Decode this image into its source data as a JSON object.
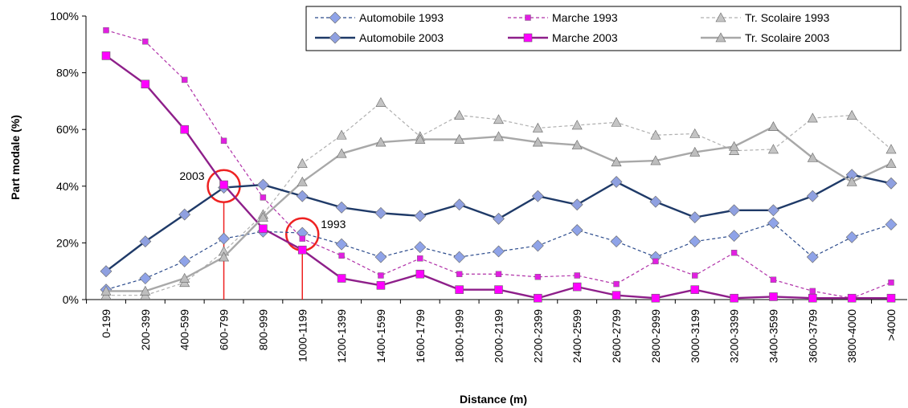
{
  "chart_data": {
    "type": "line",
    "x_label": "Distance (m)",
    "y_label": "Part modale (%)",
    "categories": [
      "0-199",
      "200-399",
      "400-599",
      "600-799",
      "800-999",
      "1000-1199",
      "1200-1399",
      "1400-1599",
      "1600-1799",
      "1800-1999",
      "2000-2199",
      "2200-2399",
      "2400-2599",
      "2600-2799",
      "2800-2999",
      "3000-3199",
      "3200-3399",
      "3400-3599",
      "3600-3799",
      "3800-4000",
      ">4000"
    ],
    "ylim": [
      0,
      100
    ],
    "yticks": [
      {
        "value": 0,
        "label": "0%"
      },
      {
        "value": 20,
        "label": "20%"
      },
      {
        "value": 40,
        "label": "40%"
      },
      {
        "value": 60,
        "label": "60%"
      },
      {
        "value": 80,
        "label": "80%"
      },
      {
        "value": 100,
        "label": "100%"
      }
    ],
    "grid": false,
    "legend": "top-right",
    "series": [
      {
        "name": "Automobile 1993",
        "color": "#2a4a8c",
        "marker_color": "#8fa3e8",
        "marker": "diamond",
        "dashed": true,
        "values": [
          3.5,
          7.5,
          13.5,
          21.5,
          24,
          23.5,
          19.5,
          15,
          18.5,
          15,
          17,
          19,
          24.5,
          20.5,
          15,
          20.5,
          22.5,
          27,
          15,
          22,
          26.5
        ]
      },
      {
        "name": "Marche 1993",
        "color": "#b030a8",
        "marker_color": "#e020e0",
        "marker": "square",
        "dashed": true,
        "values": [
          95,
          91,
          77.5,
          56,
          36,
          21.5,
          15.5,
          8.5,
          14.5,
          9,
          9,
          8,
          8.5,
          5.5,
          13.5,
          8.5,
          16.5,
          7,
          3,
          0.5,
          6
        ]
      },
      {
        "name": "Tr. Scolaire 1993",
        "color": "#b0b0b0",
        "marker_color": "#c4c4c4",
        "marker": "triangle",
        "dashed": true,
        "values": [
          1.5,
          1.5,
          6,
          17,
          30,
          48,
          58,
          69.5,
          57.5,
          65,
          63.5,
          60.5,
          61.5,
          62.5,
          58,
          58.5,
          52.5,
          53,
          64,
          65,
          53
        ]
      },
      {
        "name": "Automobile 2003",
        "color": "#1f3a68",
        "marker_color": "#8fa0e0",
        "marker": "diamond",
        "dashed": false,
        "values": [
          10,
          20.5,
          30,
          39.5,
          40.5,
          36.5,
          32.5,
          30.5,
          29.5,
          33.5,
          28.5,
          36.5,
          33.5,
          41.5,
          34.5,
          29,
          31.5,
          31.5,
          36.5,
          44,
          41
        ]
      },
      {
        "name": "Marche 2003",
        "color": "#8e1f8a",
        "marker_color": "#ff00ff",
        "marker": "square",
        "dashed": false,
        "values": [
          86,
          76,
          60,
          40.5,
          25,
          17.5,
          7.5,
          5,
          9,
          3.5,
          3.5,
          0.5,
          4.5,
          1.5,
          0.5,
          3.5,
          0.5,
          1,
          0.5,
          0.5,
          0.5
        ]
      },
      {
        "name": "Tr. Scolaire 2003",
        "color": "#a8a8a8",
        "marker_color": "#bdbdbd",
        "marker": "triangle",
        "dashed": false,
        "values": [
          3,
          3,
          7.5,
          15,
          29,
          41.5,
          51.5,
          55.5,
          56.5,
          56.5,
          57.5,
          55.5,
          54.5,
          48.5,
          49,
          52,
          54,
          61,
          50,
          41.5,
          48
        ]
      }
    ],
    "annotations": [
      {
        "text": "2003",
        "x": "600-799",
        "y": 40,
        "color": "#ee2222"
      },
      {
        "text": "1993",
        "x": "1000-1199",
        "y": 23,
        "color": "#ee2222"
      }
    ]
  }
}
